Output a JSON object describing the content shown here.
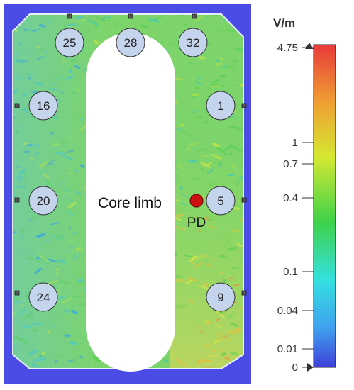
{
  "diagram": {
    "core_label": "Core limb",
    "pd_label": "PD",
    "sensors": [
      {
        "id": "sensor-25",
        "label": "25"
      },
      {
        "id": "sensor-28",
        "label": "28"
      },
      {
        "id": "sensor-32",
        "label": "32"
      },
      {
        "id": "sensor-16",
        "label": "16"
      },
      {
        "id": "sensor-1",
        "label": "1"
      },
      {
        "id": "sensor-20",
        "label": "20"
      },
      {
        "id": "sensor-5",
        "label": "5"
      },
      {
        "id": "sensor-24",
        "label": "24"
      },
      {
        "id": "sensor-9",
        "label": "9"
      }
    ]
  },
  "colorbar": {
    "unit": "V/m",
    "ticks": [
      {
        "label": "4.75",
        "value": 4.75
      },
      {
        "label": "1",
        "value": 1
      },
      {
        "label": "0.7",
        "value": 0.7
      },
      {
        "label": "0.4",
        "value": 0.4
      },
      {
        "label": "0.1",
        "value": 0.1
      },
      {
        "label": "0.04",
        "value": 0.04
      },
      {
        "label": "0.01",
        "value": 0.01
      },
      {
        "label": "0",
        "value": 0
      }
    ],
    "colors": [
      "#3f3fd8",
      "#3fa0f0",
      "#35e0e0",
      "#3ed24a",
      "#d4e832",
      "#f0a033",
      "#e83a3a"
    ]
  },
  "colors": {
    "background": "#4b4be6",
    "field_base": "#7cd46a",
    "pd_marker": "#cc1111",
    "sensor_fill": "#c3d4ec"
  }
}
